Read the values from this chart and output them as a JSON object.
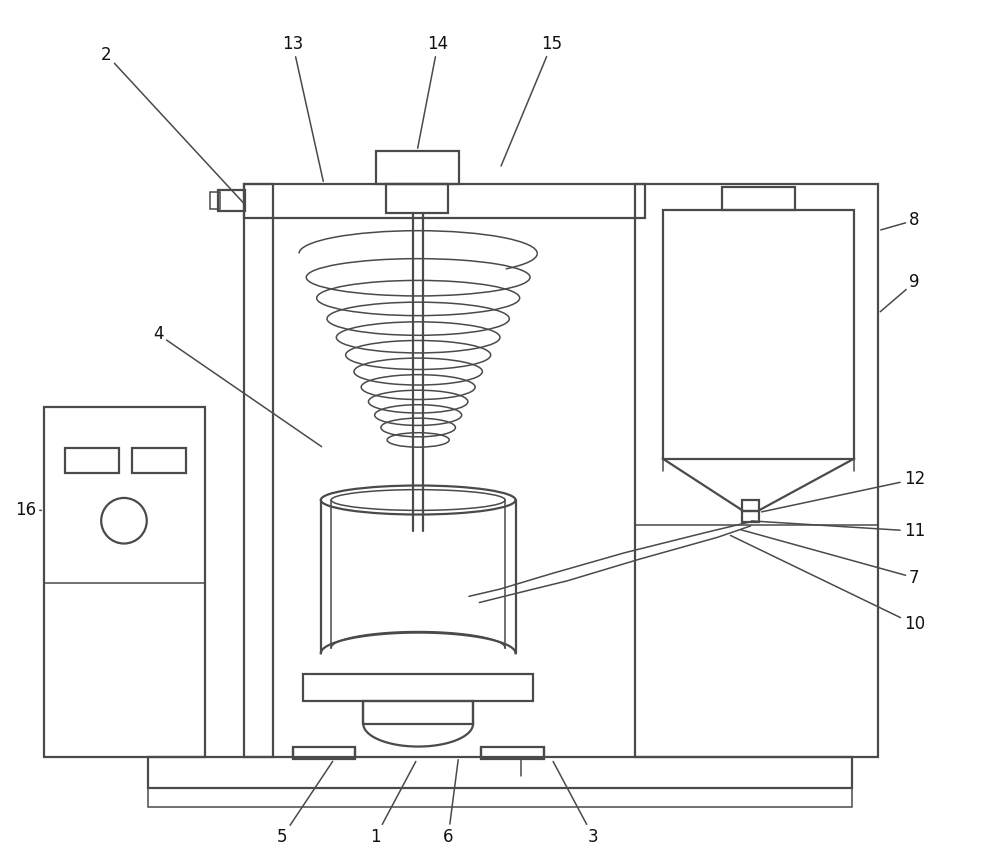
{
  "bg_color": "#ffffff",
  "line_color": "#4a4a4a",
  "lw": 1.6,
  "tlw": 1.1,
  "label_fontsize": 12,
  "label_color": "#111111"
}
